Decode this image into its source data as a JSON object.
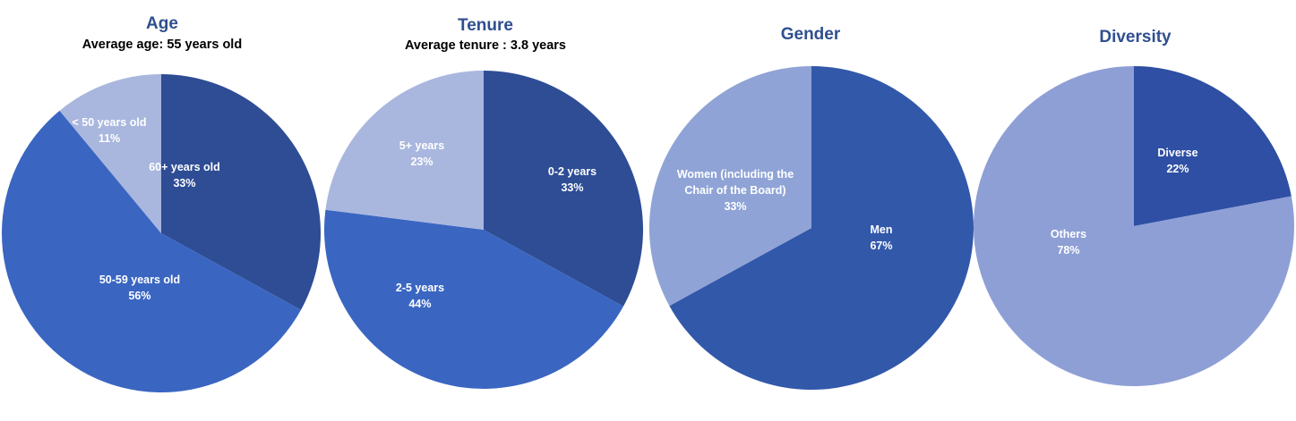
{
  "colors": {
    "title": "#2F4F8F"
  },
  "chart_data": [
    {
      "type": "pie",
      "title": "Age",
      "subtitle": "Average age: 55 years old",
      "slices": [
        {
          "label": "60+ years old",
          "value": 33,
          "value_label": "33%",
          "color": "#2E4D95"
        },
        {
          "label": "50-59 years old",
          "value": 56,
          "value_label": "56%",
          "color": "#3A66C2"
        },
        {
          "label": "< 50 years old",
          "value": 11,
          "value_label": "11%",
          "color": "#A9B7DE"
        }
      ]
    },
    {
      "type": "pie",
      "title": "Tenure",
      "subtitle": "Average tenure : 3.8 years",
      "slices": [
        {
          "label": "0-2 years",
          "value": 33,
          "value_label": "33%",
          "color": "#2E4D95"
        },
        {
          "label": "2-5 years",
          "value": 44,
          "value_label": "44%",
          "color": "#3A66C2"
        },
        {
          "label": "5+ years",
          "value": 23,
          "value_label": "23%",
          "color": "#A9B7DE"
        }
      ]
    },
    {
      "type": "pie",
      "title": "Gender",
      "subtitle": "",
      "slices": [
        {
          "label": "Men",
          "value": 67,
          "value_label": "67%",
          "color": "#3258AA"
        },
        {
          "label": "Women (including the Chair of the Board)",
          "value": 33,
          "value_label": "33%",
          "color": "#8FA3D6"
        }
      ]
    },
    {
      "type": "pie",
      "title": "Diversity",
      "subtitle": "",
      "slices": [
        {
          "label": "Diverse",
          "value": 22,
          "value_label": "22%",
          "color": "#2E4FA3"
        },
        {
          "label": "Others",
          "value": 78,
          "value_label": "78%",
          "color": "#8E9FD6"
        }
      ]
    }
  ]
}
